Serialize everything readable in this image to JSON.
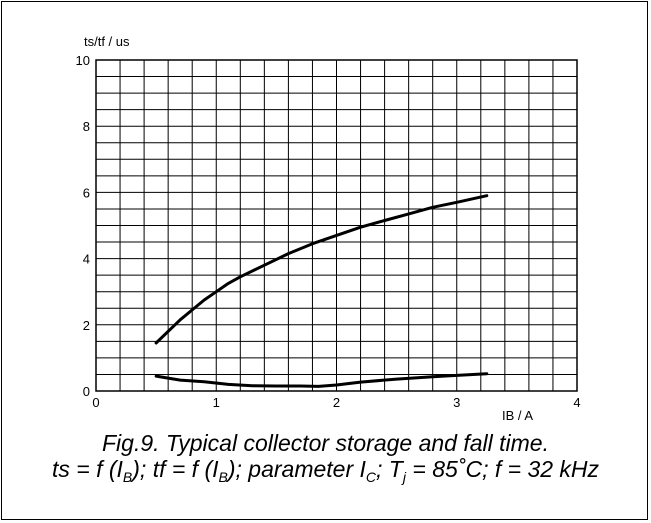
{
  "chart_data": {
    "type": "line",
    "title": "",
    "xlabel": "IB / A",
    "ylabel": "ts/tf / us",
    "xlim": [
      0,
      4
    ],
    "ylim": [
      0,
      10
    ],
    "x_ticks": [
      "0",
      "1",
      "2",
      "3",
      "4"
    ],
    "y_ticks": [
      "0",
      "2",
      "4",
      "6",
      "8",
      "10"
    ],
    "grid": true,
    "series": [
      {
        "x": [
          0.5,
          0.6,
          0.7,
          0.8,
          0.9,
          1.0,
          1.1,
          1.2,
          1.4,
          1.6,
          1.8,
          2.0,
          2.2,
          2.4,
          2.6,
          2.8,
          3.0,
          3.25
        ],
        "y": [
          1.45,
          1.8,
          2.15,
          2.45,
          2.75,
          3.0,
          3.25,
          3.45,
          3.8,
          4.15,
          4.45,
          4.7,
          4.95,
          5.15,
          5.35,
          5.55,
          5.7,
          5.9
        ]
      },
      {
        "x": [
          0.5,
          0.7,
          0.9,
          1.1,
          1.3,
          1.5,
          1.7,
          1.85,
          2.0,
          2.2,
          2.5,
          2.8,
          3.0,
          3.25
        ],
        "y": [
          0.45,
          0.33,
          0.28,
          0.2,
          0.16,
          0.15,
          0.15,
          0.14,
          0.18,
          0.27,
          0.36,
          0.43,
          0.47,
          0.52
        ]
      }
    ]
  },
  "caption": {
    "line1": "Fig.9.   Typical collector storage and fall time.",
    "l2_a": "ts = f (I",
    "l2_b": "B",
    "l2_c": "); tf = f (I",
    "l2_d": "B",
    "l2_e": "); parameter I",
    "l2_f": "C",
    "l2_g": "; T",
    "l2_h": "j",
    "l2_i": " = 85˚C; f = 32 kHz"
  }
}
